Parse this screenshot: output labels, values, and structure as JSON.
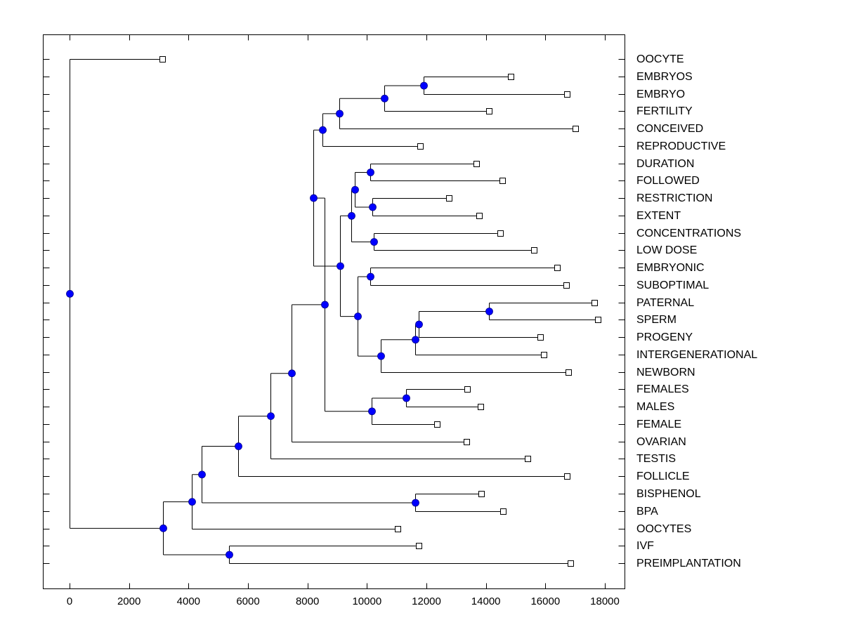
{
  "chart_data": {
    "type": "dendrogram",
    "title": "",
    "xlabel": "",
    "ylabel": "",
    "xlim": [
      -900,
      18700
    ],
    "x_ticks": [
      0,
      2000,
      4000,
      6000,
      8000,
      10000,
      12000,
      14000,
      16000,
      18000
    ],
    "x_tick_labels": [
      "0",
      "2000",
      "4000",
      "6000",
      "8000",
      "10000",
      "12000",
      "14000",
      "16000",
      "18000"
    ],
    "grid": false,
    "legend": "none",
    "leaf_marker": "open-square",
    "node_marker": "filled-circle",
    "node_color": "#0000ff",
    "leaves": [
      {
        "label": "OOCYTE",
        "value": 3140
      },
      {
        "label": "EMBRYOS",
        "value": 14860
      },
      {
        "label": "EMBRYO",
        "value": 16750
      },
      {
        "label": "FERTILITY",
        "value": 14130
      },
      {
        "label": "CONCEIVED",
        "value": 17030
      },
      {
        "label": "REPRODUCTIVE",
        "value": 11810
      },
      {
        "label": "DURATION",
        "value": 13700
      },
      {
        "label": "FOLLOWED",
        "value": 14580
      },
      {
        "label": "RESTRICTION",
        "value": 12780
      },
      {
        "label": "EXTENT",
        "value": 13800
      },
      {
        "label": "CONCENTRATIONS",
        "value": 14500
      },
      {
        "label": "LOW DOSE",
        "value": 15640
      },
      {
        "label": "EMBRYONIC",
        "value": 16420
      },
      {
        "label": "SUBOPTIMAL",
        "value": 16720
      },
      {
        "label": "PATERNAL",
        "value": 17670
      },
      {
        "label": "SPERM",
        "value": 17790
      },
      {
        "label": "PROGENY",
        "value": 15850
      },
      {
        "label": "INTERGENERATIONAL",
        "value": 15970
      },
      {
        "label": "NEWBORN",
        "value": 16800
      },
      {
        "label": "FEMALES",
        "value": 13390
      },
      {
        "label": "MALES",
        "value": 13840
      },
      {
        "label": "FEMALE",
        "value": 12380
      },
      {
        "label": "OVARIAN",
        "value": 13370
      },
      {
        "label": "TESTIS",
        "value": 15430
      },
      {
        "label": "FOLLICLE",
        "value": 16750
      },
      {
        "label": "BISPHENOL",
        "value": 13870
      },
      {
        "label": "BPA",
        "value": 14600
      },
      {
        "label": "OOCYTES",
        "value": 11060
      },
      {
        "label": "IVF",
        "value": 11760
      },
      {
        "label": "PREIMPLANTATION",
        "value": 16870
      }
    ],
    "nodes": [
      {
        "id": "n1",
        "value": 11900,
        "children": [
          "L1",
          "L2"
        ]
      },
      {
        "id": "n2",
        "value": 10580,
        "children": [
          "n1",
          "L3"
        ]
      },
      {
        "id": "n3",
        "value": 9070,
        "children": [
          "n2",
          "L4"
        ]
      },
      {
        "id": "n4",
        "value": 8500,
        "children": [
          "n3",
          "L5"
        ]
      },
      {
        "id": "n5",
        "value": 10110,
        "children": [
          "L6",
          "L7"
        ]
      },
      {
        "id": "n6",
        "value": 10180,
        "children": [
          "L8",
          "L9"
        ]
      },
      {
        "id": "n7",
        "value": 9590,
        "children": [
          "n5",
          "n6"
        ]
      },
      {
        "id": "n8",
        "value": 10230,
        "children": [
          "L10",
          "L11"
        ]
      },
      {
        "id": "n9",
        "value": 9470,
        "children": [
          "n7",
          "n8"
        ]
      },
      {
        "id": "n10",
        "value": 10110,
        "children": [
          "L12",
          "L13"
        ]
      },
      {
        "id": "n11",
        "value": 14100,
        "children": [
          "L14",
          "L15"
        ]
      },
      {
        "id": "n12",
        "value": 11740,
        "children": [
          "n11",
          "L16"
        ]
      },
      {
        "id": "n13",
        "value": 11620,
        "children": [
          "n12",
          "L17"
        ]
      },
      {
        "id": "n14",
        "value": 10470,
        "children": [
          "n13",
          "L18"
        ]
      },
      {
        "id": "n15",
        "value": 9690,
        "children": [
          "n10",
          "n14"
        ]
      },
      {
        "id": "n16",
        "value": 9090,
        "children": [
          "n9",
          "n15"
        ]
      },
      {
        "id": "n17",
        "value": 8200,
        "children": [
          "n4",
          "n16"
        ]
      },
      {
        "id": "n18",
        "value": 11320,
        "children": [
          "L19",
          "L20"
        ]
      },
      {
        "id": "n19",
        "value": 10160,
        "children": [
          "n18",
          "L21"
        ]
      },
      {
        "id": "n20",
        "value": 8580,
        "children": [
          "n17",
          "n19"
        ]
      },
      {
        "id": "n21",
        "value": 7470,
        "children": [
          "n20",
          "L22"
        ]
      },
      {
        "id": "n22",
        "value": 6760,
        "children": [
          "n21",
          "L23"
        ]
      },
      {
        "id": "n23",
        "value": 5670,
        "children": [
          "n22",
          "L24"
        ]
      },
      {
        "id": "n24",
        "value": 11620,
        "children": [
          "L25",
          "L26"
        ]
      },
      {
        "id": "n25",
        "value": 4440,
        "children": [
          "n23",
          "n24"
        ]
      },
      {
        "id": "n26",
        "value": 4110,
        "children": [
          "n25",
          "L27"
        ]
      },
      {
        "id": "n27",
        "value": 5360,
        "children": [
          "L28",
          "L29"
        ]
      },
      {
        "id": "n28",
        "value": 3140,
        "children": [
          "n26",
          "n27"
        ]
      },
      {
        "id": "root",
        "value": 0,
        "children": [
          "L0",
          "n28"
        ]
      }
    ]
  }
}
